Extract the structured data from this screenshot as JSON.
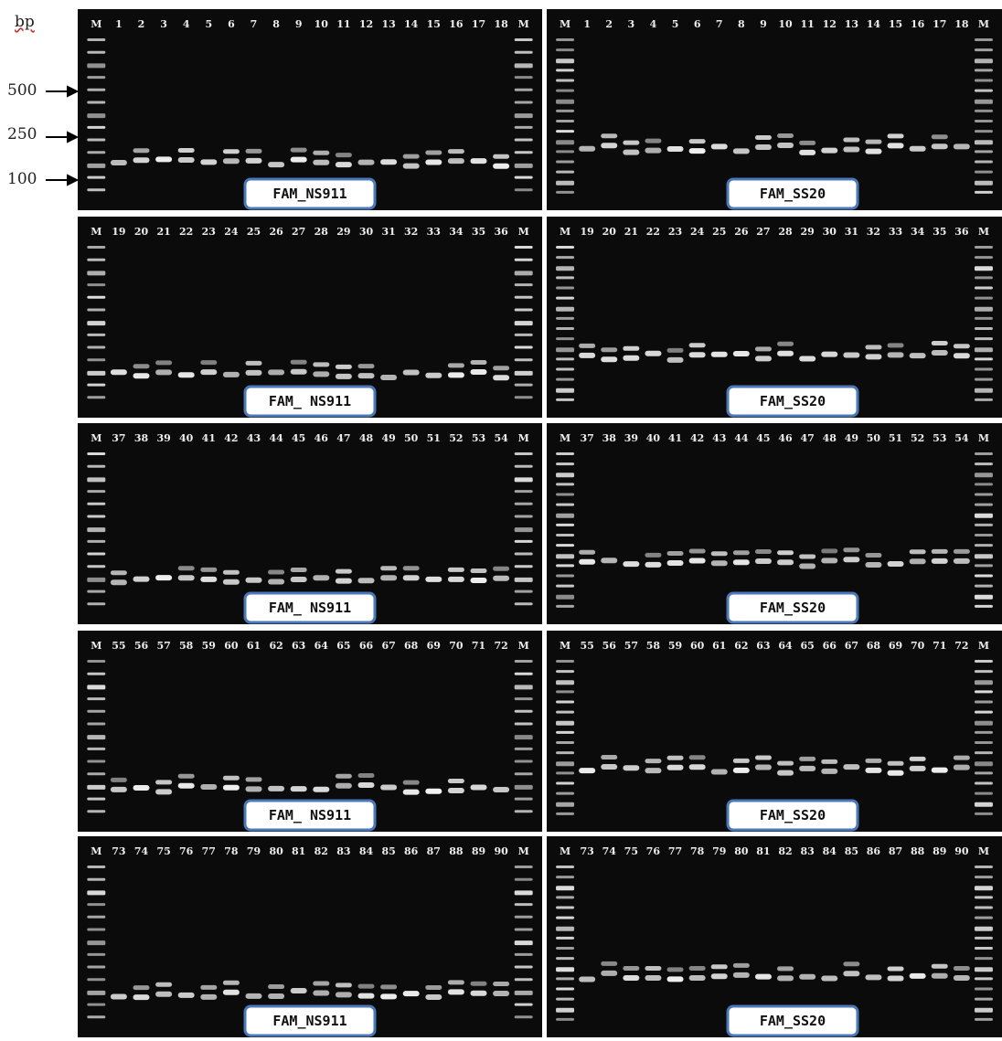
{
  "axis": {
    "unit": "bp",
    "markers": [
      "500",
      "250",
      "100"
    ]
  },
  "panels": [
    {
      "label": "FAM_NS911",
      "lanes": [
        "M",
        "1",
        "2",
        "3",
        "4",
        "5",
        "6",
        "7",
        "8",
        "9",
        "10",
        "11",
        "12",
        "13",
        "14",
        "15",
        "16",
        "17",
        "18",
        "M"
      ]
    },
    {
      "label": "FAM_ NS911",
      "lanes": [
        "M",
        "19",
        "20",
        "21",
        "22",
        "23",
        "24",
        "25",
        "26",
        "27",
        "28",
        "29",
        "30",
        "31",
        "32",
        "33",
        "34",
        "35",
        "36",
        "M"
      ]
    },
    {
      "label": "FAM_ NS911",
      "lanes": [
        "M",
        "37",
        "38",
        "39",
        "40",
        "41",
        "42",
        "43",
        "44",
        "45",
        "46",
        "47",
        "48",
        "49",
        "50",
        "51",
        "52",
        "53",
        "54",
        "M"
      ]
    },
    {
      "label": "FAM_ NS911",
      "lanes": [
        "M",
        "55",
        "56",
        "57",
        "58",
        "59",
        "60",
        "61",
        "62",
        "63",
        "64",
        "65",
        "66",
        "67",
        "68",
        "69",
        "70",
        "71",
        "72",
        "M"
      ]
    },
    {
      "label": "FAM_NS911",
      "lanes": [
        "M",
        "73",
        "74",
        "75",
        "76",
        "77",
        "78",
        "79",
        "80",
        "81",
        "82",
        "83",
        "84",
        "85",
        "86",
        "87",
        "88",
        "89",
        "90",
        "M"
      ]
    },
    {
      "label": "FAM_SS20",
      "lanes": [
        "M",
        "1",
        "2",
        "3",
        "4",
        "5",
        "6",
        "7",
        "8",
        "9",
        "10",
        "11",
        "12",
        "13",
        "14",
        "15",
        "16",
        "17",
        "18",
        "M"
      ]
    },
    {
      "label": "FAM_SS20",
      "lanes": [
        "M",
        "19",
        "20",
        "21",
        "22",
        "23",
        "24",
        "25",
        "26",
        "27",
        "28",
        "29",
        "30",
        "31",
        "32",
        "33",
        "34",
        "35",
        "36",
        "M"
      ]
    },
    {
      "label": "FAM_SS20",
      "lanes": [
        "M",
        "37",
        "38",
        "39",
        "40",
        "41",
        "42",
        "43",
        "44",
        "45",
        "46",
        "47",
        "48",
        "49",
        "50",
        "51",
        "52",
        "53",
        "54",
        "M"
      ]
    },
    {
      "label": "FAM_SS20",
      "lanes": [
        "M",
        "55",
        "56",
        "57",
        "58",
        "59",
        "60",
        "61",
        "62",
        "63",
        "64",
        "65",
        "66",
        "67",
        "68",
        "69",
        "70",
        "71",
        "72",
        "M"
      ]
    },
    {
      "label": "FAM_SS20",
      "lanes": [
        "M",
        "73",
        "74",
        "75",
        "76",
        "77",
        "78",
        "79",
        "80",
        "81",
        "82",
        "83",
        "84",
        "85",
        "86",
        "87",
        "88",
        "89",
        "90",
        "M"
      ]
    }
  ]
}
